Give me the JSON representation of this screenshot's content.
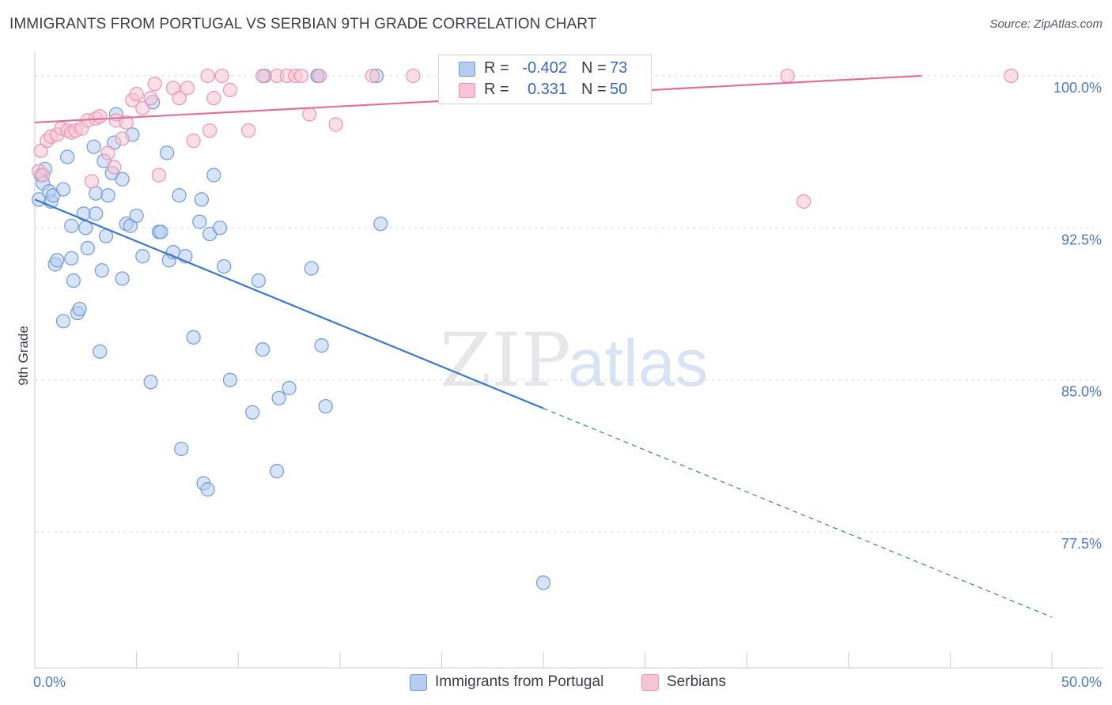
{
  "title": "IMMIGRANTS FROM PORTUGAL VS SERBIAN 9TH GRADE CORRELATION CHART",
  "source": "Source: ZipAtlas.com",
  "watermark": {
    "zip": "ZIP",
    "atlas": "atlas"
  },
  "legend_top": [
    {
      "r_label": "R =",
      "r_value": "-0.402",
      "n_label": "N =",
      "n_value": "73"
    },
    {
      "r_label": "R =",
      "r_value": "0.331",
      "n_label": "N =",
      "n_value": "50"
    }
  ],
  "legend_bottom": [
    {
      "label": "Immigrants from Portugal"
    },
    {
      "label": "Serbians"
    }
  ],
  "colors": {
    "blue_fill": "#b7cdf0",
    "blue_stroke": "#6f9ad8",
    "blue_line": "#3a78cf",
    "pink_fill": "#f6c4d4",
    "pink_stroke": "#ec93b2",
    "pink_line": "#e36f96",
    "tick_text": "#4a78c8",
    "grid": "#dcdde2"
  },
  "chart_data": {
    "type": "scatter",
    "title": "IMMIGRANTS FROM PORTUGAL VS SERBIAN 9TH GRADE CORRELATION CHART",
    "xlabel": "",
    "ylabel": "9th Grade",
    "xlim": [
      0,
      50
    ],
    "ylim": [
      70.8,
      101.4
    ],
    "x_tick_labels": [
      "0.0%",
      "50.0%"
    ],
    "y_ticks": [
      77.5,
      85.0,
      92.5,
      100.0
    ],
    "y_tick_labels": [
      "77.5%",
      "85.0%",
      "92.5%",
      "100.0%"
    ],
    "grid": true,
    "legend": "top-center",
    "series": [
      {
        "name": "Immigrants from Portugal",
        "color": "#6f9ad8",
        "trend": {
          "x": [
            0,
            25
          ],
          "y": [
            93.9,
            83.6
          ],
          "dashed_to": [
            50,
            73.3
          ]
        },
        "points": [
          [
            0.2,
            93.9
          ],
          [
            0.3,
            95.1
          ],
          [
            0.4,
            94.7
          ],
          [
            0.5,
            95.4
          ],
          [
            0.7,
            94.3
          ],
          [
            0.8,
            93.8
          ],
          [
            0.9,
            94.1
          ],
          [
            1.0,
            90.7
          ],
          [
            1.1,
            90.9
          ],
          [
            1.4,
            94.4
          ],
          [
            1.4,
            87.9
          ],
          [
            1.6,
            96.0
          ],
          [
            1.8,
            91.0
          ],
          [
            1.8,
            92.6
          ],
          [
            1.9,
            89.9
          ],
          [
            2.1,
            88.3
          ],
          [
            2.2,
            88.5
          ],
          [
            2.4,
            93.2
          ],
          [
            2.5,
            92.5
          ],
          [
            2.6,
            91.5
          ],
          [
            2.9,
            96.5
          ],
          [
            3.0,
            94.2
          ],
          [
            3.0,
            93.2
          ],
          [
            3.2,
            86.4
          ],
          [
            3.3,
            90.4
          ],
          [
            3.4,
            95.8
          ],
          [
            3.5,
            92.1
          ],
          [
            3.6,
            94.1
          ],
          [
            3.8,
            95.2
          ],
          [
            3.9,
            96.7
          ],
          [
            4.0,
            98.1
          ],
          [
            4.3,
            94.9
          ],
          [
            4.3,
            90.0
          ],
          [
            4.5,
            92.7
          ],
          [
            4.7,
            92.6
          ],
          [
            4.8,
            97.1
          ],
          [
            5.0,
            93.1
          ],
          [
            5.3,
            91.1
          ],
          [
            5.7,
            84.9
          ],
          [
            5.8,
            98.7
          ],
          [
            6.1,
            92.3
          ],
          [
            6.2,
            92.3
          ],
          [
            6.5,
            96.2
          ],
          [
            6.6,
            90.9
          ],
          [
            6.8,
            91.3
          ],
          [
            7.1,
            94.1
          ],
          [
            7.2,
            81.6
          ],
          [
            7.4,
            91.1
          ],
          [
            7.8,
            87.1
          ],
          [
            8.1,
            92.8
          ],
          [
            8.2,
            93.9
          ],
          [
            8.3,
            79.9
          ],
          [
            8.5,
            79.6
          ],
          [
            8.6,
            92.2
          ],
          [
            8.8,
            95.1
          ],
          [
            9.1,
            92.5
          ],
          [
            9.3,
            90.6
          ],
          [
            9.6,
            85.0
          ],
          [
            10.7,
            83.4
          ],
          [
            11.0,
            89.9
          ],
          [
            11.2,
            86.5
          ],
          [
            11.3,
            100.0
          ],
          [
            11.9,
            80.5
          ],
          [
            12.0,
            84.1
          ],
          [
            12.5,
            84.6
          ],
          [
            13.6,
            90.5
          ],
          [
            13.9,
            100.0
          ],
          [
            13.9,
            100.0
          ],
          [
            14.1,
            86.7
          ],
          [
            14.3,
            83.7
          ],
          [
            16.8,
            100.0
          ],
          [
            17.0,
            92.7
          ],
          [
            25.0,
            75.0
          ]
        ]
      },
      {
        "name": "Serbians",
        "color": "#ec93b2",
        "trend": {
          "x": [
            0,
            43.6
          ],
          "y": [
            97.7,
            100.0
          ]
        },
        "points": [
          [
            0.2,
            95.3
          ],
          [
            0.3,
            96.3
          ],
          [
            0.4,
            95.1
          ],
          [
            0.6,
            96.8
          ],
          [
            0.8,
            97.0
          ],
          [
            1.1,
            97.1
          ],
          [
            1.3,
            97.4
          ],
          [
            1.6,
            97.3
          ],
          [
            1.8,
            97.2
          ],
          [
            2.0,
            97.3
          ],
          [
            2.3,
            97.4
          ],
          [
            2.6,
            97.8
          ],
          [
            2.8,
            94.8
          ],
          [
            3.0,
            97.9
          ],
          [
            3.2,
            98.0
          ],
          [
            3.6,
            96.2
          ],
          [
            3.9,
            95.5
          ],
          [
            4.0,
            97.8
          ],
          [
            4.3,
            96.9
          ],
          [
            4.5,
            97.7
          ],
          [
            4.8,
            98.8
          ],
          [
            5.0,
            99.1
          ],
          [
            5.3,
            98.4
          ],
          [
            5.7,
            98.9
          ],
          [
            5.9,
            99.6
          ],
          [
            6.1,
            95.1
          ],
          [
            6.8,
            99.4
          ],
          [
            7.1,
            98.9
          ],
          [
            7.5,
            99.4
          ],
          [
            7.8,
            96.8
          ],
          [
            8.5,
            100.0
          ],
          [
            8.6,
            97.3
          ],
          [
            8.8,
            98.9
          ],
          [
            9.2,
            100.0
          ],
          [
            9.6,
            99.3
          ],
          [
            10.5,
            97.3
          ],
          [
            11.2,
            100.0
          ],
          [
            11.9,
            100.0
          ],
          [
            12.4,
            100.0
          ],
          [
            12.8,
            100.0
          ],
          [
            13.1,
            100.0
          ],
          [
            13.5,
            98.1
          ],
          [
            14.0,
            100.0
          ],
          [
            14.8,
            97.6
          ],
          [
            16.6,
            100.0
          ],
          [
            18.6,
            100.0
          ],
          [
            20.4,
            100.0
          ],
          [
            37.0,
            100.0
          ],
          [
            37.8,
            93.8
          ],
          [
            48.0,
            100.0
          ]
        ]
      }
    ]
  }
}
